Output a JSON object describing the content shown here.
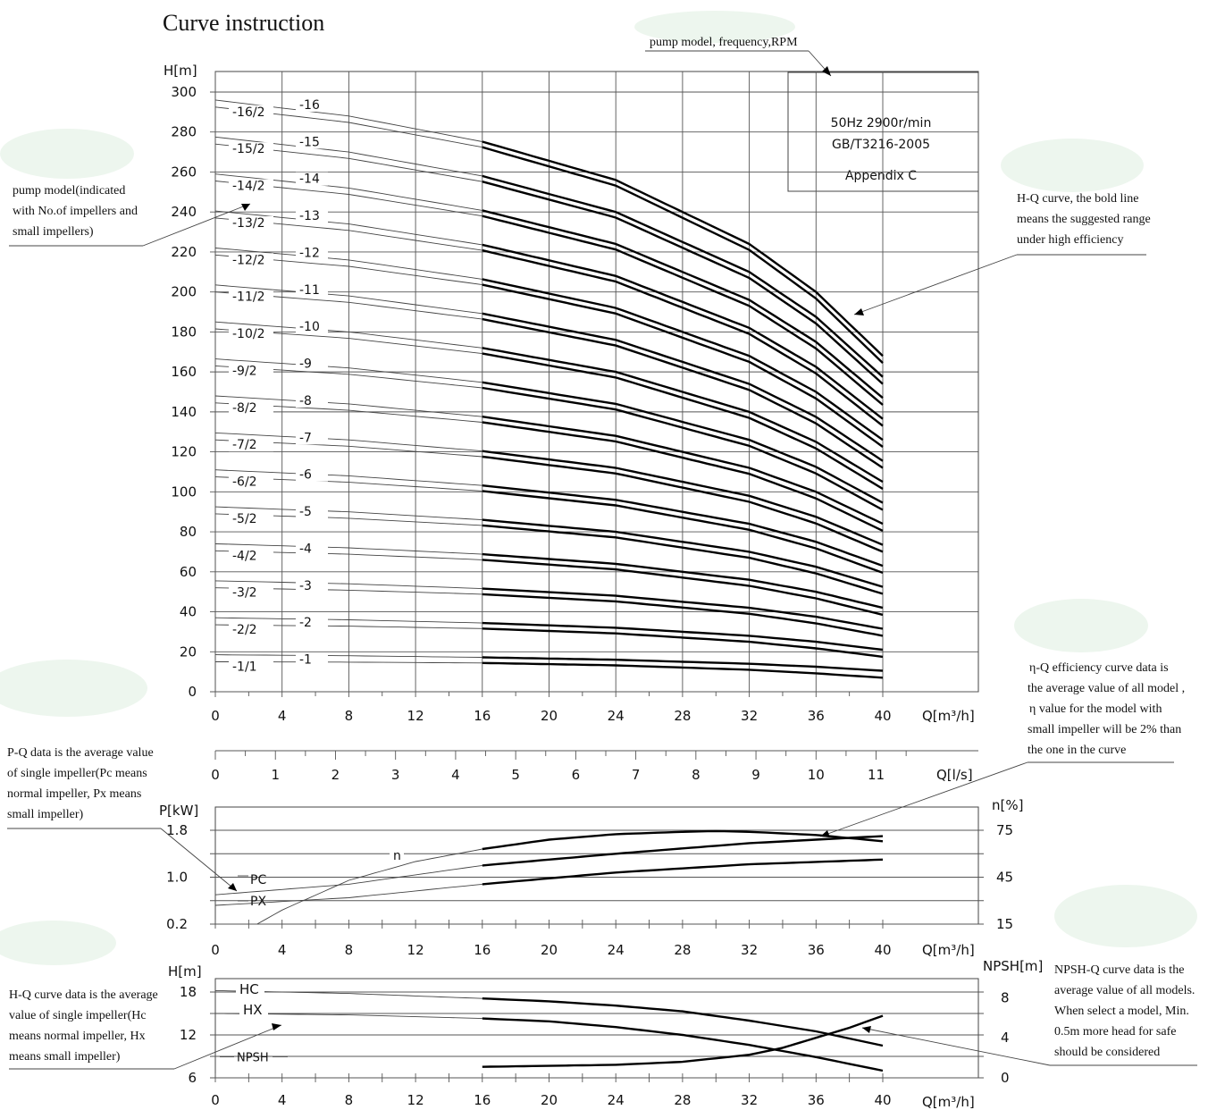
{
  "header": {
    "title": "Curve instruction"
  },
  "info_box": {
    "lines": [
      "50Hz  2900r/min",
      "GB/T3216-2005",
      "Appendix C"
    ]
  },
  "annotations": {
    "pump_model_frequency": "pump model, frequency,RPM",
    "pump_model": [
      "pump model(indicated",
      "with No.of impellers and",
      "small impellers)"
    ],
    "hq_bold": [
      "H-Q curve, the bold line",
      "means the suggested range",
      "under high efficiency"
    ],
    "eta": [
      "η-Q efficiency curve data is",
      "the average value of all model ,",
      "η  value for the model with",
      "small impeller will be 2% than",
      "the one in the curve"
    ],
    "pq": [
      "P-Q data is the average value",
      "of single impeller(Pc means",
      "normal impeller, Px means",
      "small impeller)"
    ],
    "hq_single": [
      "H-Q curve data is the average",
      "value of single impeller(Hc",
      "means normal impeller, Hx",
      "means small impeller)"
    ],
    "npsh": [
      "NPSH-Q curve data is the",
      "average value of all models.",
      "When select a model, Min.",
      "0.5m more head  for safe",
      "should be considered"
    ]
  },
  "chart_data": [
    {
      "type": "line",
      "title": "",
      "xlabel": "Q[m³/h]",
      "ylabel": "H[m]",
      "xlim": [
        0,
        40
      ],
      "ylim": [
        0,
        300
      ],
      "x_ticks": [
        0,
        4,
        8,
        12,
        16,
        20,
        24,
        28,
        32,
        36,
        40
      ],
      "y_ticks": [
        0,
        20,
        40,
        60,
        80,
        100,
        120,
        140,
        160,
        180,
        200,
        220,
        240,
        260,
        280,
        300
      ],
      "secondary_axis": {
        "label": "Q[l/s]",
        "ticks": [
          0,
          1,
          2,
          3,
          4,
          5,
          6,
          7,
          8,
          9,
          10,
          11
        ]
      },
      "series_model_labels": [
        "-1/1",
        "-1",
        "-2/2",
        "-2",
        "-3/2",
        "-3",
        "-4/2",
        "-4",
        "-5/2",
        "-5",
        "-6/2",
        "-6",
        "-7/2",
        "-7",
        "-8/2",
        "-8",
        "-9/2",
        "-9",
        "-10/2",
        "-10",
        "-11/2",
        "-11",
        "-12/2",
        "-12",
        "-13/2",
        "-13",
        "-14/2",
        "-14",
        "-15/2",
        "-15",
        "-16/2",
        "-16"
      ],
      "head_per_stage_shape": {
        "x": [
          0,
          8,
          16,
          24,
          32,
          36,
          40
        ],
        "hc": [
          18.5,
          18,
          17.2,
          16,
          14,
          12.5,
          10.5
        ],
        "hx": [
          15,
          14.8,
          14.4,
          13.2,
          11,
          9.2,
          7
        ]
      },
      "bold_range": [
        16,
        40
      ]
    },
    {
      "type": "line",
      "title": "",
      "xlabel": "Q[m³/h]",
      "ylabel": "P[kW]",
      "y2label": "n[%]",
      "xlim": [
        0,
        40
      ],
      "ylim": [
        0.2,
        1.8
      ],
      "y_ticks": [
        0.2,
        1.0,
        1.8
      ],
      "y2lim": [
        15,
        75
      ],
      "y2_ticks": [
        15,
        45,
        75
      ],
      "series": [
        {
          "name": "PC",
          "x": [
            0,
            8,
            16,
            24,
            32,
            40
          ],
          "values": [
            0.7,
            0.88,
            1.2,
            1.4,
            1.58,
            1.7
          ]
        },
        {
          "name": "PX",
          "x": [
            0,
            8,
            16,
            24,
            32,
            40
          ],
          "values": [
            0.52,
            0.65,
            0.88,
            1.08,
            1.22,
            1.3
          ]
        },
        {
          "name": "n",
          "axis": "y2",
          "x": [
            2.5,
            4,
            8,
            12,
            16,
            20,
            24,
            28,
            30,
            32,
            36,
            40
          ],
          "values": [
            15,
            24,
            43,
            55,
            63,
            69,
            72.5,
            74,
            74.5,
            74,
            72,
            68
          ]
        }
      ],
      "bold_range": [
        16,
        40
      ]
    },
    {
      "type": "line",
      "title": "",
      "xlabel": "Q[m³/h]",
      "ylabel": "H[m]",
      "y2label": "NPSH[m]",
      "xlim": [
        0,
        40
      ],
      "ylim": [
        6,
        20
      ],
      "y_ticks": [
        6,
        12,
        18
      ],
      "y2lim": [
        0,
        10
      ],
      "y2_ticks": [
        0,
        4,
        8
      ],
      "series": [
        {
          "name": "HC",
          "x": [
            0,
            8,
            16,
            20,
            24,
            28,
            32,
            36,
            40
          ],
          "values": [
            18.2,
            17.8,
            17.1,
            16.7,
            16.1,
            15.3,
            14.0,
            12.5,
            10.5
          ]
        },
        {
          "name": "HX",
          "x": [
            0,
            8,
            16,
            20,
            24,
            28,
            32,
            36,
            40
          ],
          "values": [
            15,
            14.8,
            14.3,
            13.9,
            13.1,
            12.0,
            10.6,
            8.9,
            7.0
          ]
        },
        {
          "name": "NPSH",
          "axis": "y2",
          "x": [
            16,
            20,
            24,
            28,
            32,
            34,
            36,
            38,
            40
          ],
          "values": [
            1.1,
            1.2,
            1.3,
            1.6,
            2.3,
            3.0,
            4.0,
            5.0,
            6.2
          ]
        }
      ],
      "bold_range": [
        16,
        40
      ]
    }
  ]
}
